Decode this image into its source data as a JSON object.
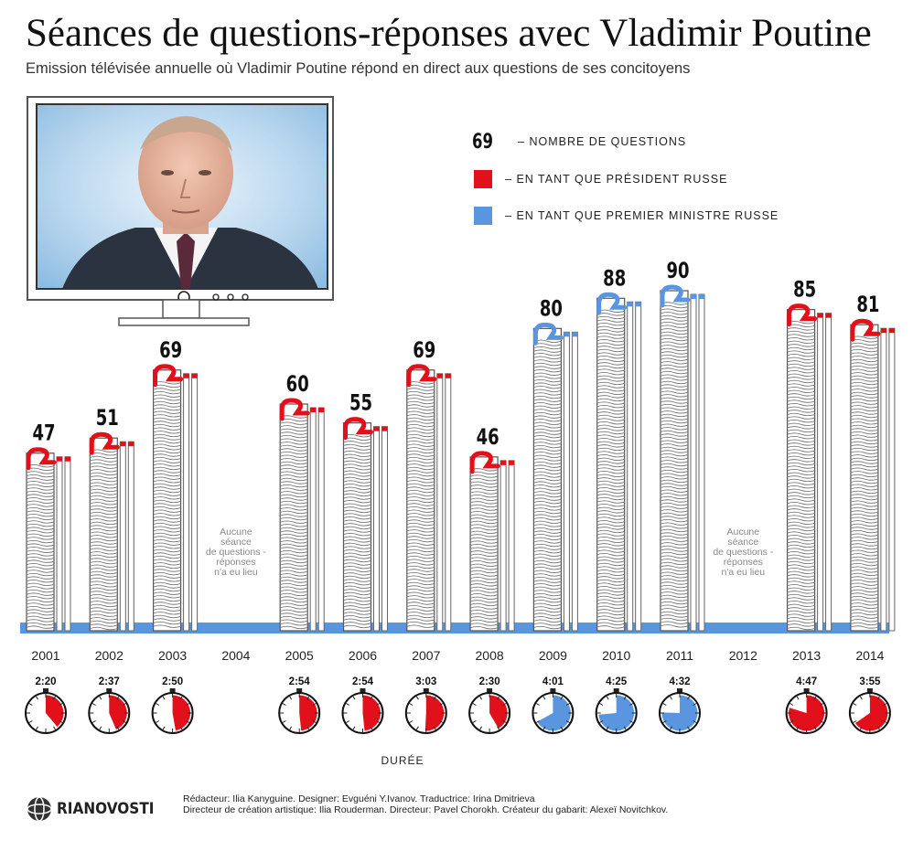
{
  "title": "Séances de questions-réponses avec Vladimir Poutine",
  "subtitle": "Emission télévisée annuelle où Vladimir Poutine répond en direct aux questions de ses concitoyens",
  "legend": {
    "sample_number": "69",
    "number_label": "NOMBRE DE QUESTIONS",
    "president_label": "EN TANT QUE PRÉSIDENT RUSSE",
    "pm_label": "EN TANT QUE PREMIER MINISTRE RUSSE"
  },
  "colors": {
    "president": "#e2101a",
    "pm": "#5a96e0",
    "baseline": "#5a96e0"
  },
  "icons": {
    "logo": "ria-globe-icon",
    "tv": "television-icon",
    "stopwatch": "stopwatch-icon"
  },
  "chart_data": {
    "type": "bar",
    "categories": [
      "2001",
      "2002",
      "2003",
      "2004",
      "2005",
      "2006",
      "2007",
      "2008",
      "2009",
      "2010",
      "2011",
      "2012",
      "2013",
      "2014"
    ],
    "values": [
      47,
      51,
      69,
      null,
      60,
      55,
      69,
      46,
      80,
      88,
      90,
      null,
      85,
      81
    ],
    "roles": [
      "president",
      "president",
      "president",
      null,
      "president",
      "president",
      "president",
      "president",
      "pm",
      "pm",
      "pm",
      null,
      "president",
      "president"
    ],
    "durations": [
      "2:20",
      "2:37",
      "2:50",
      null,
      "2:54",
      "2:54",
      "3:03",
      "2:30",
      "4:01",
      "4:25",
      "4:32",
      null,
      "4:47",
      "3:55"
    ],
    "duration_minutes": [
      140,
      157,
      170,
      null,
      174,
      174,
      183,
      150,
      241,
      265,
      272,
      null,
      287,
      235
    ],
    "duration_label": "DURÉE",
    "no_session_note": "Aucune séance de questions - réponses n'a eu lieu",
    "ylim": [
      0,
      90
    ],
    "grid": false
  },
  "footer": {
    "logo_text": "RIANOVOSTI",
    "credits_line1": "Rédacteur: Ilia Kanyguine. Designer: Evguéni Y.Ivanov. Traductrice: Irina Dmitrieva",
    "credits_line2": "Directeur de création artistique: Ilia Rouderman. Directeur: Pavel Chorokh. Créateur du gabarit: Alexeï Novitchkov."
  }
}
